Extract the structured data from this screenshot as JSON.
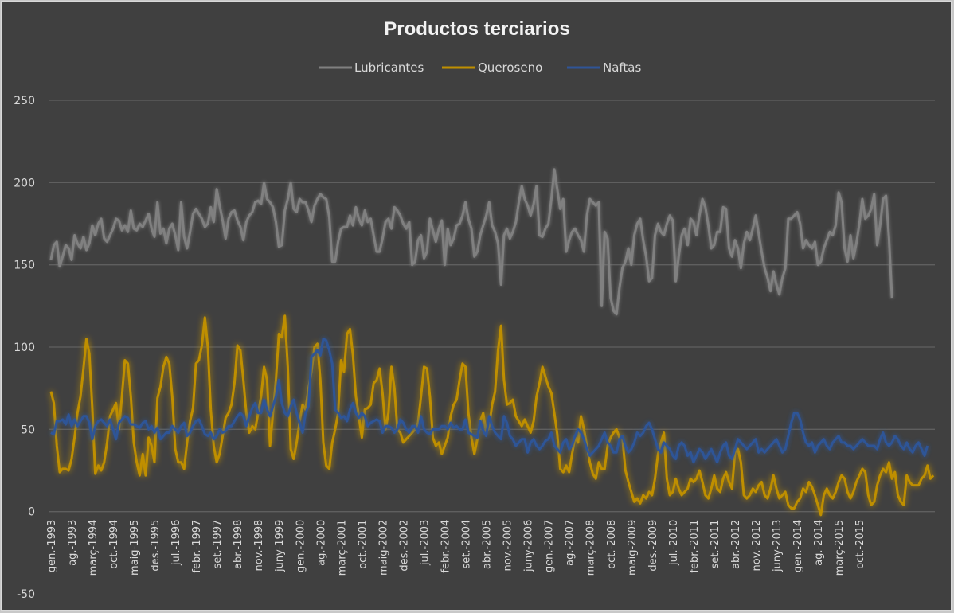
{
  "chart_data": {
    "type": "line",
    "title": "Productos terciarios",
    "xlabel": "",
    "ylabel": "",
    "ylim": [
      -50,
      250
    ],
    "yticks": [
      -50,
      0,
      50,
      100,
      150,
      200,
      250
    ],
    "grid": true,
    "legend_position": "top",
    "x_start": "gen.-1993",
    "x_step_months": 1,
    "x_tick_labels": [
      "gen.-1993",
      "ag.-1993",
      "març-1994",
      "oct.-1994",
      "maig-1995",
      "des.-1995",
      "jul.-1996",
      "febr.-1997",
      "set.-1997",
      "abr.-1998",
      "nov.-1998",
      "juny-1999",
      "gen.-2000",
      "ag.-2000",
      "març-2001",
      "oct.-2001",
      "maig-2002",
      "des.-2002",
      "jul.-2003",
      "febr.-2004",
      "set.-2004",
      "abr.-2005",
      "nov.-2005",
      "juny-2006",
      "gen.-2007",
      "ag.-2007",
      "març-2008",
      "oct.-2008",
      "maig-2009",
      "des.-2009",
      "jul.-2010",
      "febr.-2011",
      "set.-2011",
      "abr.-2012",
      "nov.-2012",
      "juny-2013",
      "gen.-2014",
      "ag.-2014",
      "març-2015",
      "oct.-2015"
    ],
    "x_tick_every_months": 7,
    "series": [
      {
        "name": "Lubricantes",
        "color": "#808080",
        "values": [
          153,
          162,
          164,
          149,
          155,
          162,
          160,
          153,
          168,
          163,
          160,
          167,
          159,
          163,
          174,
          168,
          175,
          178,
          166,
          164,
          168,
          172,
          178,
          177,
          171,
          174,
          170,
          183,
          172,
          171,
          175,
          173,
          177,
          181,
          172,
          167,
          188,
          169,
          172,
          163,
          172,
          175,
          168,
          159,
          188,
          167,
          160,
          170,
          181,
          184,
          181,
          178,
          173,
          175,
          185,
          176,
          196,
          186,
          177,
          166,
          178,
          182,
          183,
          177,
          173,
          165,
          176,
          180,
          182,
          188,
          189,
          187,
          200,
          190,
          188,
          185,
          176,
          161,
          162,
          183,
          190,
          200,
          184,
          182,
          190,
          188,
          188,
          183,
          176,
          186,
          190,
          193,
          191,
          190,
          179,
          152,
          152,
          164,
          172,
          173,
          173,
          180,
          174,
          185,
          178,
          174,
          183,
          176,
          178,
          168,
          158,
          158,
          166,
          176,
          178,
          172,
          185,
          183,
          180,
          175,
          172,
          176,
          150,
          152,
          165,
          168,
          154,
          158,
          178,
          171,
          164,
          172,
          177,
          150,
          172,
          162,
          166,
          174,
          175,
          180,
          188,
          178,
          172,
          155,
          158,
          168,
          174,
          180,
          188,
          174,
          170,
          163,
          138,
          168,
          172,
          166,
          170,
          176,
          188,
          198,
          190,
          186,
          180,
          187,
          198,
          168,
          167,
          172,
          175,
          190,
          208,
          196,
          184,
          190,
          158,
          165,
          170,
          172,
          168,
          165,
          158,
          180,
          190,
          188,
          186,
          188,
          125,
          170,
          166,
          130,
          122,
          120,
          136,
          148,
          152,
          160,
          150,
          168,
          175,
          178,
          165,
          155,
          140,
          142,
          168,
          175,
          170,
          168,
          175,
          180,
          177,
          140,
          155,
          168,
          172,
          162,
          178,
          176,
          168,
          180,
          190,
          185,
          174,
          160,
          162,
          170,
          170,
          185,
          184,
          160,
          155,
          165,
          160,
          148,
          163,
          170,
          165,
          172,
          180,
          169,
          158,
          148,
          142,
          134,
          146,
          138,
          132,
          142,
          148,
          178,
          178,
          180,
          182,
          175,
          160,
          165,
          162,
          160,
          164,
          150,
          152,
          160,
          165,
          170,
          168,
          174,
          194,
          188,
          160,
          152,
          168,
          154,
          163,
          175,
          190,
          178,
          180,
          184,
          193,
          162,
          174,
          190,
          192,
          166,
          130
        ],
        "glow": false
      },
      {
        "name": "Queroseno",
        "color": "#bf8f00",
        "values": [
          73,
          66,
          40,
          24,
          26,
          26,
          25,
          32,
          45,
          60,
          70,
          87,
          105,
          96,
          63,
          23,
          28,
          25,
          30,
          42,
          58,
          62,
          66,
          50,
          70,
          92,
          90,
          70,
          42,
          30,
          22,
          35,
          22,
          45,
          40,
          30,
          69,
          76,
          88,
          94,
          90,
          70,
          38,
          30,
          30,
          26,
          42,
          55,
          63,
          90,
          92,
          101,
          118,
          100,
          62,
          40,
          30,
          35,
          46,
          57,
          60,
          65,
          78,
          101,
          98,
          80,
          60,
          48,
          52,
          50,
          60,
          70,
          88,
          80,
          40,
          60,
          80,
          108,
          106,
          119,
          88,
          38,
          32,
          42,
          55,
          65,
          62,
          75,
          85,
          100,
          102,
          80,
          42,
          28,
          26,
          42,
          50,
          60,
          92,
          85,
          108,
          111,
          95,
          70,
          58,
          45,
          62,
          63,
          65,
          78,
          80,
          87,
          72,
          50,
          60,
          88,
          75,
          50,
          48,
          42,
          44,
          46,
          48,
          50,
          54,
          70,
          88,
          87,
          70,
          45,
          40,
          42,
          35,
          40,
          45,
          58,
          65,
          68,
          80,
          90,
          88,
          60,
          45,
          35,
          44,
          55,
          60,
          48,
          52,
          65,
          73,
          98,
          113,
          80,
          65,
          66,
          68,
          58,
          55,
          52,
          56,
          52,
          48,
          55,
          70,
          78,
          88,
          82,
          76,
          72,
          60,
          47,
          26,
          24,
          28,
          24,
          35,
          45,
          42,
          58,
          50,
          40,
          30,
          23,
          20,
          30,
          26,
          26,
          40,
          45,
          48,
          50,
          45,
          45,
          25,
          18,
          12,
          6,
          8,
          5,
          10,
          8,
          12,
          10,
          20,
          35,
          42,
          48,
          20,
          10,
          12,
          20,
          14,
          10,
          12,
          14,
          20,
          18,
          20,
          25,
          18,
          10,
          8,
          14,
          22,
          14,
          12,
          20,
          24,
          18,
          14,
          36,
          38,
          30,
          10,
          8,
          10,
          14,
          12,
          16,
          18,
          10,
          8,
          14,
          22,
          14,
          8,
          10,
          12,
          4,
          2,
          2,
          6,
          8,
          14,
          12,
          18,
          15,
          10,
          4,
          -2,
          10,
          14,
          10,
          8,
          12,
          18,
          22,
          20,
          12,
          8,
          12,
          18,
          22,
          26,
          24,
          10,
          4,
          6,
          16,
          22,
          26,
          24,
          30,
          20,
          24,
          10,
          6,
          4,
          22,
          18,
          16,
          16,
          16,
          20,
          22,
          28,
          20,
          22
        ],
        "glow": true
      },
      {
        "name": "Naftas",
        "color": "#2f5597",
        "values": [
          48,
          47,
          55,
          55,
          56,
          53,
          59,
          52,
          56,
          52,
          55,
          58,
          58,
          54,
          44,
          52,
          55,
          56,
          54,
          52,
          56,
          50,
          44,
          54,
          56,
          58,
          57,
          53,
          53,
          52,
          51,
          54,
          55,
          50,
          52,
          48,
          51,
          44,
          46,
          48,
          48,
          52,
          50,
          48,
          52,
          54,
          46,
          48,
          52,
          55,
          56,
          52,
          47,
          46,
          48,
          44,
          46,
          50,
          48,
          49,
          52,
          52,
          55,
          58,
          60,
          58,
          52,
          58,
          63,
          66,
          60,
          60,
          68,
          62,
          58,
          64,
          70,
          80,
          66,
          60,
          58,
          64,
          68,
          60,
          54,
          48,
          60,
          64,
          94,
          96,
          98,
          95,
          105,
          104,
          98,
          90,
          62,
          60,
          57,
          58,
          55,
          62,
          66,
          60,
          57,
          60,
          58,
          52,
          54,
          55,
          56,
          55,
          48,
          52,
          52,
          51,
          48,
          50,
          56,
          54,
          50,
          48,
          52,
          52,
          48,
          58,
          50,
          48,
          47,
          50,
          50,
          50,
          52,
          52,
          50,
          54,
          51,
          52,
          50,
          50,
          56,
          48,
          47,
          46,
          45,
          55,
          49,
          46,
          58,
          52,
          48,
          46,
          44,
          58,
          54,
          46,
          44,
          40,
          42,
          44,
          44,
          36,
          42,
          44,
          40,
          38,
          40,
          43,
          44,
          48,
          40,
          38,
          36,
          42,
          44,
          38,
          40,
          46,
          50,
          48,
          44,
          38,
          34,
          36,
          38,
          40,
          44,
          48,
          42,
          40,
          36,
          36,
          44,
          46,
          40,
          36,
          38,
          42,
          48,
          46,
          48,
          52,
          54,
          50,
          44,
          38,
          36,
          42,
          40,
          38,
          34,
          32,
          40,
          42,
          40,
          34,
          36,
          30,
          34,
          38,
          36,
          32,
          35,
          38,
          34,
          30,
          36,
          40,
          42,
          34,
          32,
          38,
          44,
          42,
          40,
          38,
          40,
          42,
          44,
          36,
          38,
          36,
          38,
          40,
          42,
          44,
          40,
          36,
          38,
          46,
          54,
          60,
          60,
          56,
          48,
          42,
          40,
          42,
          36,
          40,
          42,
          44,
          40,
          38,
          42,
          44,
          46,
          42,
          42,
          40,
          40,
          38,
          40,
          42,
          44,
          42,
          40,
          40,
          40,
          38,
          44,
          48,
          42,
          40,
          42,
          46,
          44,
          40,
          38,
          42,
          38,
          36,
          40,
          42,
          38,
          34,
          40
        ],
        "glow": true
      }
    ]
  }
}
